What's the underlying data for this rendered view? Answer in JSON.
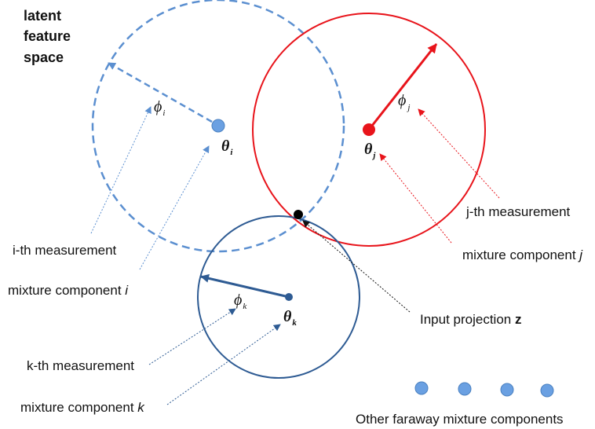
{
  "title_lines": [
    "latent",
    "feature",
    "space"
  ],
  "colors": {
    "component_i": "#5b8fd0",
    "component_j": "#e8141b",
    "component_k": "#2e5b93",
    "input_point": "#000000",
    "faraway_dots": "#5b9ae0"
  },
  "symbols": {
    "phi": "ϕ",
    "theta": "θ",
    "sub_i": "i",
    "sub_j": "j",
    "sub_k": "k"
  },
  "labels": {
    "i_measurement": "i-th measurement",
    "mixture_i_text": "mixture component ",
    "mixture_i_var": "i",
    "j_measurement": "j-th measurement",
    "mixture_j_text": "mixture component ",
    "mixture_j_var": "j",
    "k_measurement": "k-th measurement",
    "mixture_k_text": "mixture component ",
    "mixture_k_var": "k",
    "input_projection_text": "Input projection ",
    "input_projection_var": "z",
    "faraway": "Other faraway mixture components"
  }
}
